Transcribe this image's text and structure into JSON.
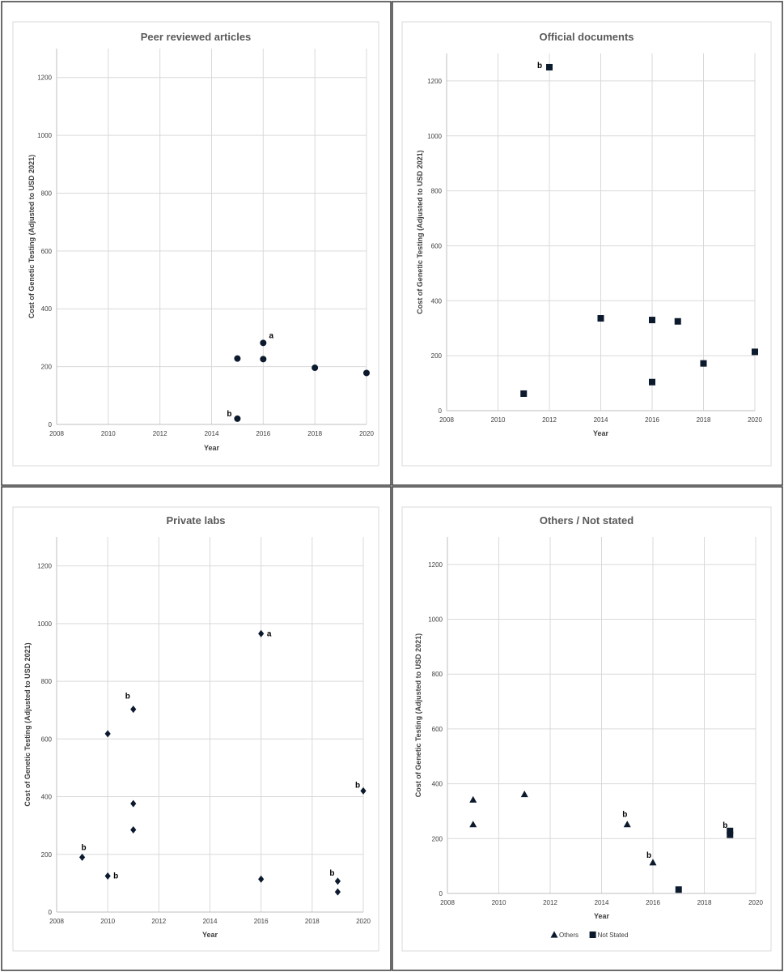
{
  "chart_data": [
    {
      "type": "scatter",
      "title": "Peer reviewed articles",
      "xlabel": "Year",
      "ylabel": "Cost of Genetic Testing (Adjusted to USD 2021)",
      "xlim": [
        2008,
        2020
      ],
      "ylim": [
        0,
        1300
      ],
      "xticks": [
        "2008",
        "2010",
        "2012",
        "2014",
        "2016",
        "2018",
        "2020"
      ],
      "yticks": [
        "0",
        "200",
        "400",
        "600",
        "800",
        "1000",
        "1200"
      ],
      "grid": true,
      "series": [
        {
          "marker": "circle",
          "x": [
            2015,
            2015,
            2016,
            2016,
            2018,
            2020
          ],
          "y": [
            228,
            20,
            282,
            226,
            196,
            178
          ]
        }
      ],
      "annotations": [
        {
          "text": "a",
          "x": 2016,
          "y": 282
        },
        {
          "text": "b",
          "x": 2015,
          "y": 20
        }
      ]
    },
    {
      "type": "scatter",
      "title": "Official documents",
      "xlabel": "Year",
      "ylabel": "Cost of Genetic Testing (Adjusted to USD 2021)",
      "xlim": [
        2008,
        2020
      ],
      "ylim": [
        0,
        1300
      ],
      "xticks": [
        "2008",
        "2010",
        "2012",
        "2014",
        "2016",
        "2018",
        "2020"
      ],
      "yticks": [
        "0",
        "200",
        "400",
        "600",
        "800",
        "1000",
        "1200"
      ],
      "grid": true,
      "series": [
        {
          "marker": "square",
          "x": [
            2011,
            2012,
            2014,
            2016,
            2016,
            2017,
            2018,
            2020
          ],
          "y": [
            62,
            1250,
            336,
            330,
            104,
            325,
            172,
            214
          ]
        }
      ],
      "annotations": [
        {
          "text": "b",
          "x": 2012,
          "y": 1250
        }
      ]
    },
    {
      "type": "scatter",
      "title": "Private labs",
      "xlabel": "Year",
      "ylabel": "Cost of Genetic Testing (Adjusted to USD 2021)",
      "xlim": [
        2008,
        2020
      ],
      "ylim": [
        0,
        1300
      ],
      "xticks": [
        "2008",
        "2010",
        "2012",
        "2014",
        "2016",
        "2018",
        "2020"
      ],
      "yticks": [
        "0",
        "200",
        "400",
        "600",
        "800",
        "1000",
        "1200"
      ],
      "grid": true,
      "series": [
        {
          "marker": "diamond",
          "x": [
            2009,
            2010,
            2010,
            2011,
            2011,
            2011,
            2016,
            2016,
            2019,
            2019,
            2020
          ],
          "y": [
            190,
            618,
            125,
            703,
            376,
            285,
            965,
            114,
            107,
            70,
            420
          ]
        }
      ],
      "annotations": [
        {
          "text": "b",
          "x": 2009,
          "y": 190
        },
        {
          "text": "b",
          "x": 2010,
          "y": 125
        },
        {
          "text": "b",
          "x": 2011,
          "y": 703
        },
        {
          "text": "a",
          "x": 2016,
          "y": 965
        },
        {
          "text": "b",
          "x": 2019,
          "y": 107
        },
        {
          "text": "b",
          "x": 2020,
          "y": 420
        }
      ]
    },
    {
      "type": "scatter",
      "title": "Others / Not stated",
      "xlabel": "Year",
      "ylabel": "Cost of Genetic Testing (Adjusted to USD 2021)",
      "xlim": [
        2008,
        2020
      ],
      "ylim": [
        0,
        1300
      ],
      "xticks": [
        "2008",
        "2010",
        "2012",
        "2014",
        "2016",
        "2018",
        "2020"
      ],
      "yticks": [
        "0",
        "200",
        "400",
        "600",
        "800",
        "1000",
        "1200"
      ],
      "grid": true,
      "legend": "bottom",
      "series": [
        {
          "name": "Others",
          "marker": "triangle",
          "x": [
            2009,
            2009,
            2011,
            2015,
            2016
          ],
          "y": [
            342,
            252,
            362,
            252,
            113
          ]
        },
        {
          "name": "Not Stated",
          "marker": "square",
          "x": [
            2017,
            2019,
            2019
          ],
          "y": [
            14,
            228,
            214
          ]
        }
      ],
      "annotations": [
        {
          "text": "b",
          "x": 2015,
          "y": 252
        },
        {
          "text": "b",
          "x": 2016,
          "y": 113
        },
        {
          "text": "b",
          "x": 2019,
          "y": 228
        }
      ]
    }
  ],
  "colors": {
    "marker": "#0c1a2e",
    "grid": "#d9d9d9",
    "axis": "#bfbfbf",
    "text": "#404040",
    "border": "#3a3a3a",
    "panelBorder": "#d9d9d9"
  }
}
